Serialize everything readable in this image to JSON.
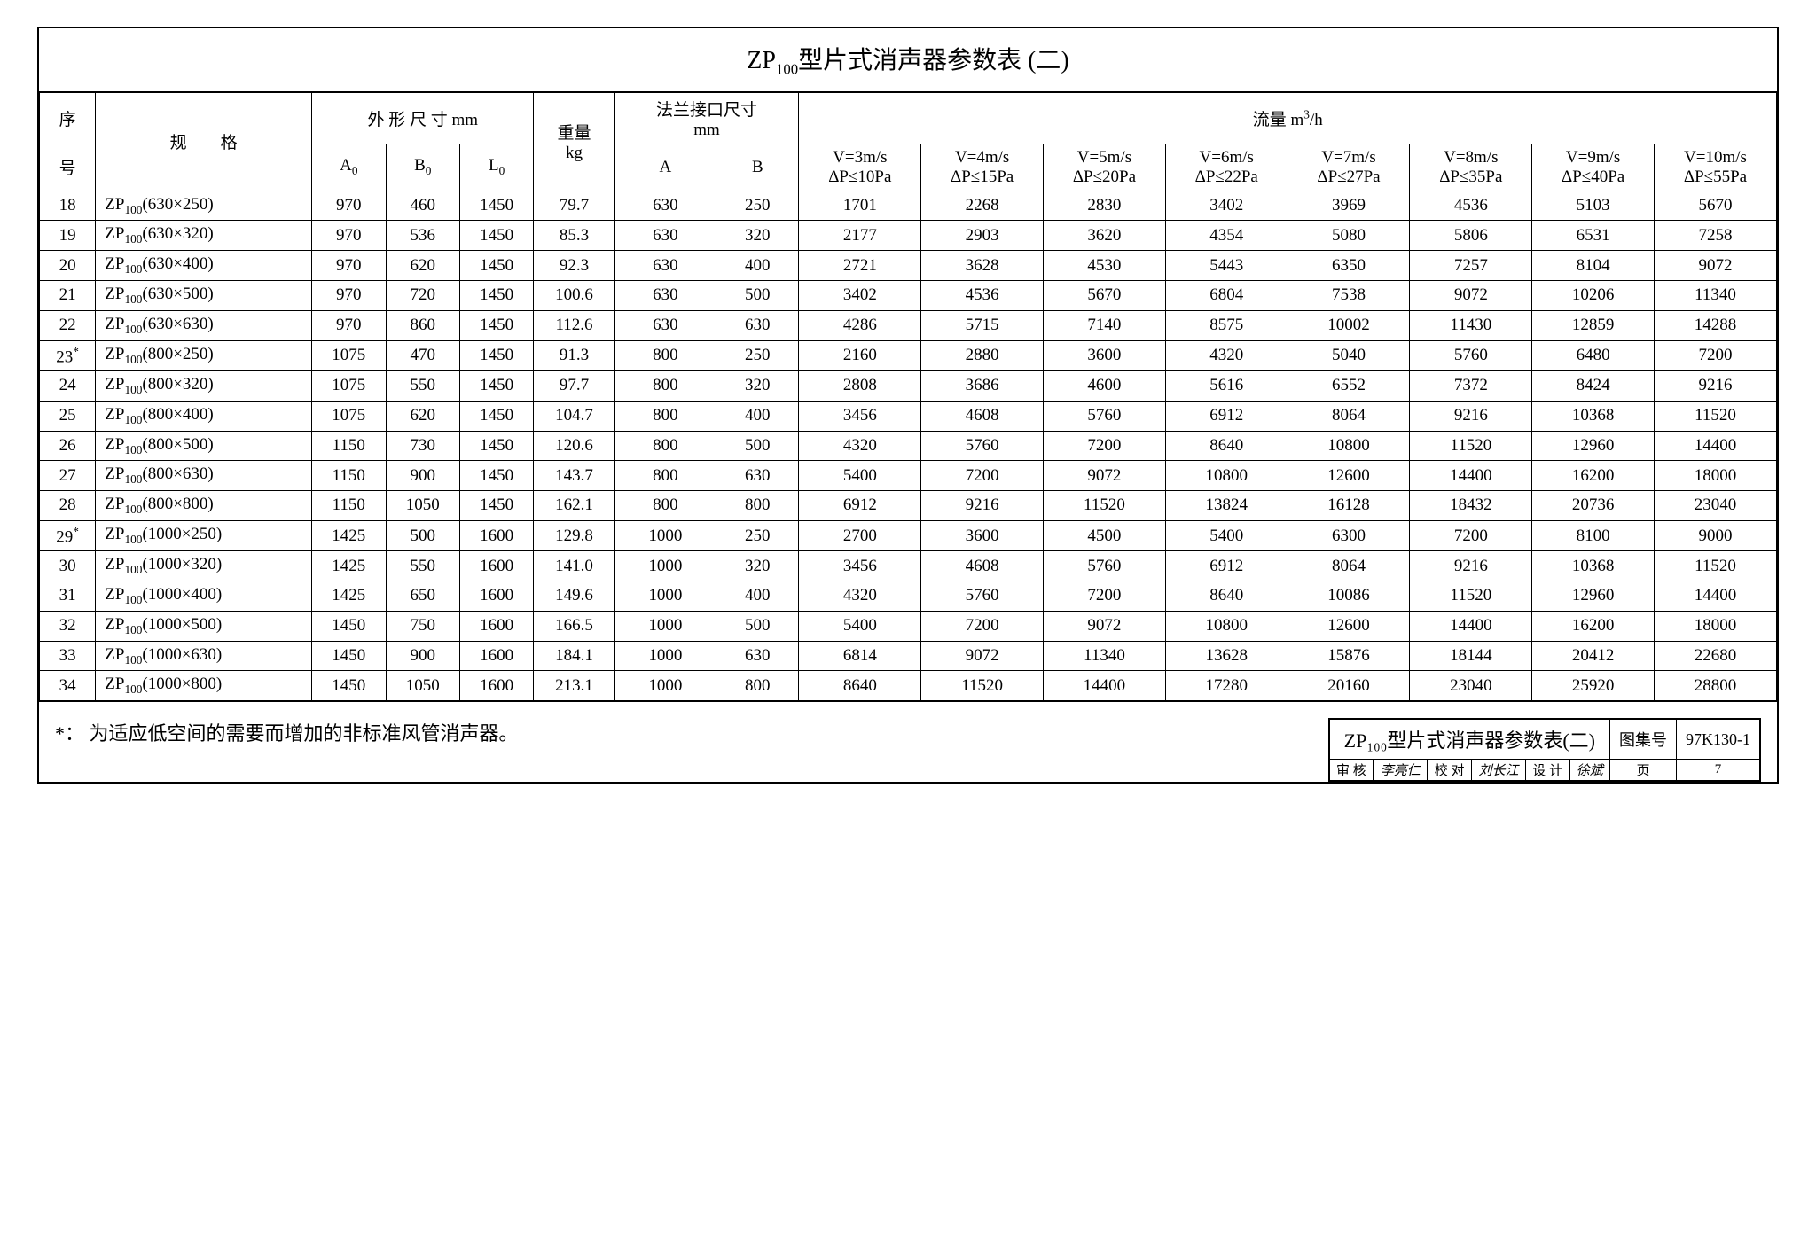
{
  "title_prefix": "ZP",
  "title_sub": "100",
  "title_suffix": "型片式消声器参数表 (二)",
  "headers": {
    "seq_top": "序",
    "seq_bot": "号",
    "spec_left": "规",
    "spec_right": "格",
    "dim_group": "外 形 尺 寸 mm",
    "A0": "A",
    "A0_sub": "0",
    "B0": "B",
    "B0_sub": "0",
    "L0": "L",
    "L0_sub": "0",
    "weight_top": "重量",
    "weight_bot": "kg",
    "flange_top": "法兰接口尺寸",
    "flange_bot": "mm",
    "A": "A",
    "B": "B",
    "flow_label": "流量  m",
    "flow_sup": "3",
    "flow_unit": "/h",
    "v3": "V=3m/s",
    "dp3": "ΔP≤10Pa",
    "v4": "V=4m/s",
    "dp4": "ΔP≤15Pa",
    "v5": "V=5m/s",
    "dp5": "ΔP≤20Pa",
    "v6": "V=6m/s",
    "dp6": "ΔP≤22Pa",
    "v7": "V=7m/s",
    "dp7": "ΔP≤27Pa",
    "v8": "V=8m/s",
    "dp8": "ΔP≤35Pa",
    "v9": "V=9m/s",
    "dp9": "ΔP≤40Pa",
    "v10": "V=10m/s",
    "dp10": "ΔP≤55Pa"
  },
  "spec_prefix": "ZP",
  "spec_sub": "100",
  "rows": [
    {
      "n": "18",
      "star": "",
      "dim": "(630×250)",
      "a0": "970",
      "b0": "460",
      "l0": "1450",
      "w": "79.7",
      "a": "630",
      "b": "250",
      "f": [
        "1701",
        "2268",
        "2830",
        "3402",
        "3969",
        "4536",
        "5103",
        "5670"
      ]
    },
    {
      "n": "19",
      "star": "",
      "dim": "(630×320)",
      "a0": "970",
      "b0": "536",
      "l0": "1450",
      "w": "85.3",
      "a": "630",
      "b": "320",
      "f": [
        "2177",
        "2903",
        "3620",
        "4354",
        "5080",
        "5806",
        "6531",
        "7258"
      ]
    },
    {
      "n": "20",
      "star": "",
      "dim": "(630×400)",
      "a0": "970",
      "b0": "620",
      "l0": "1450",
      "w": "92.3",
      "a": "630",
      "b": "400",
      "f": [
        "2721",
        "3628",
        "4530",
        "5443",
        "6350",
        "7257",
        "8104",
        "9072"
      ]
    },
    {
      "n": "21",
      "star": "",
      "dim": "(630×500)",
      "a0": "970",
      "b0": "720",
      "l0": "1450",
      "w": "100.6",
      "a": "630",
      "b": "500",
      "f": [
        "3402",
        "4536",
        "5670",
        "6804",
        "7538",
        "9072",
        "10206",
        "11340"
      ]
    },
    {
      "n": "22",
      "star": "",
      "dim": "(630×630)",
      "a0": "970",
      "b0": "860",
      "l0": "1450",
      "w": "112.6",
      "a": "630",
      "b": "630",
      "f": [
        "4286",
        "5715",
        "7140",
        "8575",
        "10002",
        "11430",
        "12859",
        "14288"
      ]
    },
    {
      "n": "23",
      "star": "*",
      "dim": "(800×250)",
      "a0": "1075",
      "b0": "470",
      "l0": "1450",
      "w": "91.3",
      "a": "800",
      "b": "250",
      "f": [
        "2160",
        "2880",
        "3600",
        "4320",
        "5040",
        "5760",
        "6480",
        "7200"
      ]
    },
    {
      "n": "24",
      "star": "",
      "dim": "(800×320)",
      "a0": "1075",
      "b0": "550",
      "l0": "1450",
      "w": "97.7",
      "a": "800",
      "b": "320",
      "f": [
        "2808",
        "3686",
        "4600",
        "5616",
        "6552",
        "7372",
        "8424",
        "9216"
      ]
    },
    {
      "n": "25",
      "star": "",
      "dim": "(800×400)",
      "a0": "1075",
      "b0": "620",
      "l0": "1450",
      "w": "104.7",
      "a": "800",
      "b": "400",
      "f": [
        "3456",
        "4608",
        "5760",
        "6912",
        "8064",
        "9216",
        "10368",
        "11520"
      ]
    },
    {
      "n": "26",
      "star": "",
      "dim": "(800×500)",
      "a0": "1150",
      "b0": "730",
      "l0": "1450",
      "w": "120.6",
      "a": "800",
      "b": "500",
      "f": [
        "4320",
        "5760",
        "7200",
        "8640",
        "10800",
        "11520",
        "12960",
        "14400"
      ]
    },
    {
      "n": "27",
      "star": "",
      "dim": "(800×630)",
      "a0": "1150",
      "b0": "900",
      "l0": "1450",
      "w": "143.7",
      "a": "800",
      "b": "630",
      "f": [
        "5400",
        "7200",
        "9072",
        "10800",
        "12600",
        "14400",
        "16200",
        "18000"
      ]
    },
    {
      "n": "28",
      "star": "",
      "dim": "(800×800)",
      "a0": "1150",
      "b0": "1050",
      "l0": "1450",
      "w": "162.1",
      "a": "800",
      "b": "800",
      "f": [
        "6912",
        "9216",
        "11520",
        "13824",
        "16128",
        "18432",
        "20736",
        "23040"
      ]
    },
    {
      "n": "29",
      "star": "*",
      "dim": "(1000×250)",
      "a0": "1425",
      "b0": "500",
      "l0": "1600",
      "w": "129.8",
      "a": "1000",
      "b": "250",
      "f": [
        "2700",
        "3600",
        "4500",
        "5400",
        "6300",
        "7200",
        "8100",
        "9000"
      ]
    },
    {
      "n": "30",
      "star": "",
      "dim": "(1000×320)",
      "a0": "1425",
      "b0": "550",
      "l0": "1600",
      "w": "141.0",
      "a": "1000",
      "b": "320",
      "f": [
        "3456",
        "4608",
        "5760",
        "6912",
        "8064",
        "9216",
        "10368",
        "11520"
      ]
    },
    {
      "n": "31",
      "star": "",
      "dim": "(1000×400)",
      "a0": "1425",
      "b0": "650",
      "l0": "1600",
      "w": "149.6",
      "a": "1000",
      "b": "400",
      "f": [
        "4320",
        "5760",
        "7200",
        "8640",
        "10086",
        "11520",
        "12960",
        "14400"
      ]
    },
    {
      "n": "32",
      "star": "",
      "dim": "(1000×500)",
      "a0": "1450",
      "b0": "750",
      "l0": "1600",
      "w": "166.5",
      "a": "1000",
      "b": "500",
      "f": [
        "5400",
        "7200",
        "9072",
        "10800",
        "12600",
        "14400",
        "16200",
        "18000"
      ]
    },
    {
      "n": "33",
      "star": "",
      "dim": "(1000×630)",
      "a0": "1450",
      "b0": "900",
      "l0": "1600",
      "w": "184.1",
      "a": "1000",
      "b": "630",
      "f": [
        "6814",
        "9072",
        "11340",
        "13628",
        "15876",
        "18144",
        "20412",
        "22680"
      ]
    },
    {
      "n": "34",
      "star": "",
      "dim": "(1000×800)",
      "a0": "1450",
      "b0": "1050",
      "l0": "1600",
      "w": "213.1",
      "a": "1000",
      "b": "800",
      "f": [
        "8640",
        "11520",
        "14400",
        "17280",
        "20160",
        "23040",
        "25920",
        "28800"
      ]
    }
  ],
  "footnote": "*：   为适应低空间的需要而增加的非标准风管消声器。",
  "info": {
    "title": "ZP₁₀₀型片式消声器参数表(二)",
    "album_label": "图集号",
    "album_value": "97K130-1",
    "audit_label": "审 核",
    "audit_value": "李亮仁",
    "check_label": "校 对",
    "check_value": "刘长江",
    "design_label": "设 计",
    "design_value": "徐斌",
    "page_label": "页",
    "page_value": "7"
  },
  "style": {
    "colors": {
      "border": "#000000",
      "background": "#ffffff",
      "text": "#000000"
    },
    "fonts": {
      "title_pt": 28,
      "body_pt": 19,
      "footer_pt": 20
    }
  }
}
